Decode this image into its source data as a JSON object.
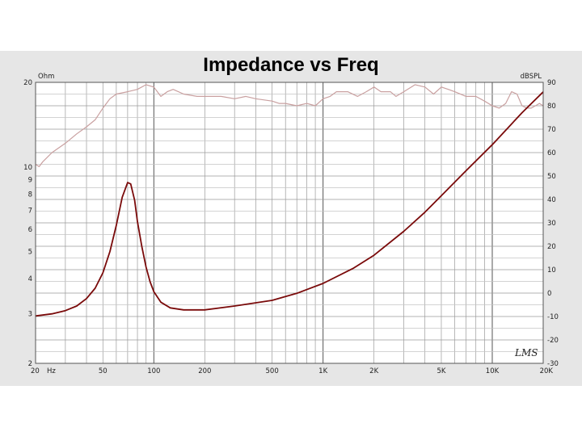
{
  "chart_data": {
    "type": "line",
    "title": "Impedance vs Freq",
    "x_scale": "log",
    "x_unit_label": "Hz",
    "xlim": [
      20,
      20000
    ],
    "x_tick_labels": [
      {
        "value": 20,
        "label": "20"
      },
      {
        "value": 50,
        "label": "50"
      },
      {
        "value": 100,
        "label": "100"
      },
      {
        "value": 200,
        "label": "200"
      },
      {
        "value": 500,
        "label": "500"
      },
      {
        "value": 1000,
        "label": "1K"
      },
      {
        "value": 2000,
        "label": "2K"
      },
      {
        "value": 5000,
        "label": "5K"
      },
      {
        "value": 10000,
        "label": "10K"
      },
      {
        "value": 20000,
        "label": "20K"
      }
    ],
    "y_left": {
      "unit": "Ohm",
      "scale": "log",
      "lim": [
        2,
        20
      ],
      "ticks": [
        {
          "value": 2,
          "label": "2"
        },
        {
          "value": 3,
          "label": "3"
        },
        {
          "value": 4,
          "label": "4"
        },
        {
          "value": 5,
          "label": "5"
        },
        {
          "value": 6,
          "label": "6"
        },
        {
          "value": 7,
          "label": "7"
        },
        {
          "value": 8,
          "label": "8"
        },
        {
          "value": 9,
          "label": "9"
        },
        {
          "value": 10,
          "label": "10"
        },
        {
          "value": 20,
          "label": "20"
        }
      ]
    },
    "y_right": {
      "unit": "dBSPL",
      "scale": "linear",
      "lim": [
        -30,
        90
      ],
      "ticks": [
        {
          "value": -30,
          "label": "-30"
        },
        {
          "value": -20,
          "label": "-20"
        },
        {
          "value": -10,
          "label": "-10"
        },
        {
          "value": 0,
          "label": "0"
        },
        {
          "value": 10,
          "label": "10"
        },
        {
          "value": 20,
          "label": "20"
        },
        {
          "value": 30,
          "label": "30"
        },
        {
          "value": 40,
          "label": "40"
        },
        {
          "value": 50,
          "label": "50"
        },
        {
          "value": 60,
          "label": "60"
        },
        {
          "value": 70,
          "label": "70"
        },
        {
          "value": 80,
          "label": "80"
        },
        {
          "value": 90,
          "label": "90"
        }
      ]
    },
    "grid": true,
    "series": [
      {
        "axis": "left",
        "color": "#7a0a0a",
        "points": [
          [
            20,
            2.95
          ],
          [
            25,
            3.0
          ],
          [
            30,
            3.08
          ],
          [
            35,
            3.2
          ],
          [
            40,
            3.4
          ],
          [
            45,
            3.7
          ],
          [
            50,
            4.2
          ],
          [
            55,
            5.0
          ],
          [
            60,
            6.2
          ],
          [
            65,
            7.8
          ],
          [
            70,
            8.8
          ],
          [
            73,
            8.7
          ],
          [
            77,
            7.6
          ],
          [
            80,
            6.4
          ],
          [
            85,
            5.2
          ],
          [
            90,
            4.4
          ],
          [
            95,
            3.9
          ],
          [
            100,
            3.6
          ],
          [
            110,
            3.3
          ],
          [
            125,
            3.15
          ],
          [
            150,
            3.1
          ],
          [
            200,
            3.1
          ],
          [
            300,
            3.2
          ],
          [
            500,
            3.35
          ],
          [
            700,
            3.55
          ],
          [
            1000,
            3.85
          ],
          [
            1500,
            4.35
          ],
          [
            2000,
            4.85
          ],
          [
            3000,
            5.9
          ],
          [
            4000,
            6.9
          ],
          [
            5000,
            7.9
          ],
          [
            7000,
            9.7
          ],
          [
            10000,
            12.0
          ],
          [
            15000,
            15.6
          ],
          [
            20000,
            18.5
          ]
        ]
      },
      {
        "axis": "right",
        "color": "#c9a0a0",
        "points": [
          [
            20,
            55
          ],
          [
            21,
            54
          ],
          [
            22,
            56
          ],
          [
            25,
            60
          ],
          [
            30,
            64
          ],
          [
            35,
            68
          ],
          [
            40,
            71
          ],
          [
            45,
            74
          ],
          [
            50,
            79
          ],
          [
            55,
            83
          ],
          [
            60,
            85
          ],
          [
            70,
            86
          ],
          [
            80,
            87
          ],
          [
            90,
            89
          ],
          [
            100,
            88
          ],
          [
            110,
            84
          ],
          [
            120,
            86
          ],
          [
            130,
            87
          ],
          [
            150,
            85
          ],
          [
            180,
            84
          ],
          [
            200,
            84
          ],
          [
            250,
            84
          ],
          [
            300,
            83
          ],
          [
            350,
            84
          ],
          [
            400,
            83
          ],
          [
            500,
            82
          ],
          [
            550,
            81
          ],
          [
            600,
            81
          ],
          [
            700,
            80
          ],
          [
            800,
            81
          ],
          [
            900,
            80
          ],
          [
            1000,
            83
          ],
          [
            1100,
            84
          ],
          [
            1200,
            86
          ],
          [
            1400,
            86
          ],
          [
            1600,
            84
          ],
          [
            1800,
            86
          ],
          [
            2000,
            88
          ],
          [
            2200,
            86
          ],
          [
            2500,
            86
          ],
          [
            2700,
            84
          ],
          [
            3000,
            86
          ],
          [
            3500,
            89
          ],
          [
            4000,
            88
          ],
          [
            4500,
            85
          ],
          [
            5000,
            88
          ],
          [
            5500,
            87
          ],
          [
            6000,
            86
          ],
          [
            7000,
            84
          ],
          [
            8000,
            84
          ],
          [
            9000,
            82
          ],
          [
            10000,
            80
          ],
          [
            11000,
            79
          ],
          [
            12000,
            81
          ],
          [
            13000,
            86
          ],
          [
            14000,
            85
          ],
          [
            15000,
            80
          ],
          [
            16000,
            79
          ],
          [
            17000,
            79
          ],
          [
            18000,
            80
          ],
          [
            19000,
            81
          ],
          [
            20000,
            80
          ]
        ]
      }
    ]
  },
  "logo": "LMS"
}
